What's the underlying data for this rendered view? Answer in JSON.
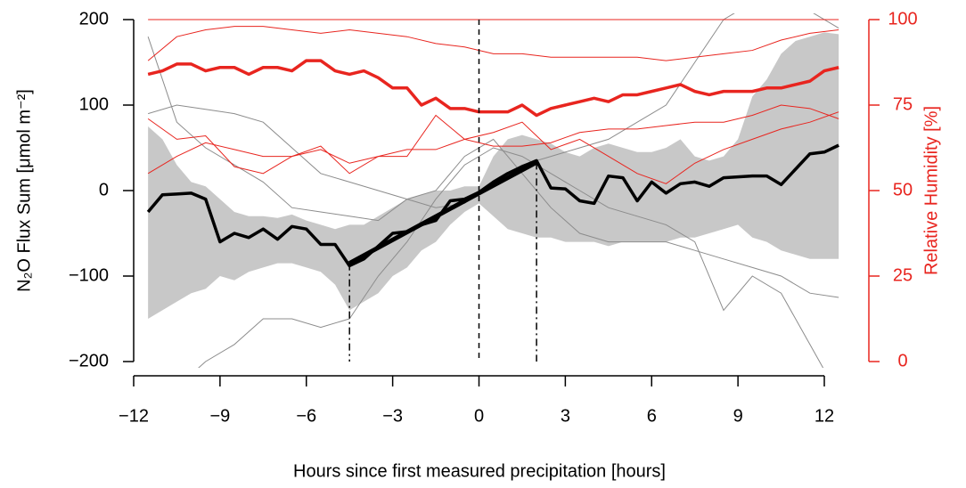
{
  "chart_data": {
    "type": "line",
    "xlabel": "Hours since first measured precipitation [hours]",
    "ylabel": "N₂O Flux Sum [μmol m⁻²]",
    "y2label": "Relative Humidity [%]",
    "xlim": [
      -12,
      12
    ],
    "xticks": [
      {
        "value": -12,
        "label": "−12"
      },
      {
        "value": -9,
        "label": "−9"
      },
      {
        "value": -6,
        "label": "−6"
      },
      {
        "value": -3,
        "label": "−3"
      },
      0,
      3,
      6,
      9,
      12
    ],
    "ylim": [
      -200,
      200
    ],
    "yticks": [
      {
        "value": -200,
        "label": "−200"
      },
      {
        "value": -100,
        "label": "−100"
      },
      0,
      100,
      200
    ],
    "y2lim": [
      0,
      100
    ],
    "y2ticks": [
      0,
      25,
      50,
      75,
      100
    ],
    "x": [
      -11.5,
      -11,
      -10.5,
      -10,
      -9.5,
      -9,
      -8.5,
      -8,
      -7.5,
      -7,
      -6.5,
      -6,
      -5.5,
      -5,
      -4.5,
      -4,
      -3.5,
      -3,
      -2.5,
      -2,
      -1.5,
      -1,
      -0.5,
      0,
      0.5,
      1,
      1.5,
      2,
      2.5,
      3,
      3.5,
      4,
      4.5,
      5,
      5.5,
      6,
      6.5,
      7,
      7.5,
      8,
      8.5,
      9,
      9.5,
      10,
      10.5,
      11,
      11.5,
      12,
      12.5
    ],
    "band": {
      "color": "#c8c8c8",
      "lower": [
        -150,
        -140,
        -130,
        -120,
        -115,
        -100,
        -105,
        -95,
        -90,
        -85,
        -85,
        -90,
        -95,
        -110,
        -140,
        -130,
        -120,
        -100,
        -90,
        -70,
        -60,
        -40,
        -25,
        -15,
        -30,
        -45,
        -50,
        -55,
        -55,
        -60,
        -60,
        -60,
        -65,
        -60,
        -60,
        -60,
        -60,
        -55,
        -55,
        -50,
        -45,
        -40,
        -55,
        -60,
        -70,
        -75,
        -80,
        -80,
        -80
      ],
      "upper": [
        75,
        60,
        30,
        10,
        5,
        -10,
        -25,
        -30,
        -30,
        -32,
        -28,
        -35,
        -40,
        -45,
        -40,
        -40,
        -30,
        -20,
        -10,
        -5,
        0,
        0,
        5,
        5,
        40,
        60,
        65,
        60,
        55,
        45,
        40,
        50,
        55,
        50,
        45,
        45,
        50,
        60,
        40,
        35,
        40,
        60,
        110,
        130,
        160,
        175,
        180,
        185,
        183
      ]
    },
    "thin_series": [
      {
        "color": "#8c8c8c",
        "axis": "y",
        "x": [
          -11.5,
          -10.5,
          -9.5,
          -8.5,
          -7.5,
          -6.5,
          -5.5,
          -4.5,
          -3.5,
          -2.5,
          -1.5,
          -0.5,
          0.5,
          1.5,
          2.5,
          3.5,
          4.5,
          5.5,
          6.5,
          7.5,
          8.5,
          9.5,
          10.5,
          11.5,
          12.5
        ],
        "values": [
          180,
          80,
          50,
          30,
          10,
          -20,
          -25,
          -30,
          -35,
          -10,
          0,
          40,
          60,
          20,
          -20,
          -50,
          -60,
          -60,
          -60,
          -70,
          -80,
          -90,
          -100,
          -120,
          -125
        ]
      },
      {
        "color": "#8c8c8c",
        "axis": "y",
        "x": [
          -11.5,
          -10.5,
          -9.5,
          -8.5,
          -7.5,
          -6.5,
          -5.5,
          -4.5,
          -3.5,
          -2.5,
          -1.5,
          -0.5,
          0.5,
          1.5,
          2.5,
          3.5,
          4.5,
          5.5,
          6.5,
          7.5,
          8.5,
          9.5,
          10.5,
          11.5,
          12.5
        ],
        "values": [
          -210,
          -230,
          -200,
          -180,
          -150,
          -150,
          -160,
          -150,
          -100,
          -60,
          -10,
          30,
          50,
          40,
          20,
          0,
          -20,
          -30,
          -40,
          -60,
          -140,
          -100,
          -120,
          -180,
          -240
        ]
      },
      {
        "color": "#8c8c8c",
        "axis": "y",
        "x": [
          -11.5,
          -10.5,
          -9.5,
          -8.5,
          -7.5,
          -6.5,
          -5.5,
          -4.5,
          -3.5,
          -2.5,
          -1.5,
          -0.5,
          0.5,
          1.5,
          2.5,
          3.5,
          4.5,
          5.5,
          6.5,
          7.5,
          8.5,
          9.5,
          10.5,
          11.5,
          12.5
        ],
        "values": [
          90,
          100,
          95,
          90,
          80,
          50,
          20,
          10,
          0,
          -10,
          -20,
          -15,
          10,
          30,
          40,
          50,
          60,
          80,
          100,
          150,
          200,
          220,
          230,
          210,
          190
        ]
      },
      {
        "color": "#e8251f",
        "axis": "y2",
        "x": [
          -11.5,
          -10.5,
          -9.5,
          -8.5,
          -7.5,
          -6.5,
          -5.5,
          -4.5,
          -3.5,
          -2.5,
          -1.5,
          -0.5,
          0.5,
          1.5,
          2.5,
          3.5,
          4.5,
          5.5,
          6.5,
          7.5,
          8.5,
          9.5,
          10.5,
          11.5,
          12.5
        ],
        "values": [
          100,
          100,
          100,
          100,
          100,
          100,
          100,
          100,
          100,
          100,
          100,
          100,
          100,
          100,
          100,
          100,
          100,
          100,
          100,
          100,
          100,
          100,
          100,
          100,
          100
        ]
      },
      {
        "color": "#e8251f",
        "axis": "y2",
        "x": [
          -11.5,
          -10.5,
          -9.5,
          -8.5,
          -7.5,
          -6.5,
          -5.5,
          -4.5,
          -3.5,
          -2.5,
          -1.5,
          -0.5,
          0.5,
          1.5,
          2.5,
          3.5,
          4.5,
          5.5,
          6.5,
          7.5,
          8.5,
          9.5,
          10.5,
          11.5,
          12.5
        ],
        "values": [
          88,
          95,
          97,
          98,
          98,
          97,
          96,
          97,
          96,
          95,
          93,
          92,
          90,
          90,
          89,
          89,
          89,
          89,
          88,
          89,
          90,
          91,
          94,
          96,
          97
        ]
      },
      {
        "color": "#e8251f",
        "axis": "y2",
        "x": [
          -11.5,
          -10.5,
          -9.5,
          -8.5,
          -7.5,
          -6.5,
          -5.5,
          -4.5,
          -3.5,
          -2.5,
          -1.5,
          -0.5,
          0.5,
          1.5,
          2.5,
          3.5,
          4.5,
          5.5,
          6.5,
          7.5,
          8.5,
          9.5,
          10.5,
          11.5,
          12.5
        ],
        "values": [
          71,
          65,
          66,
          57,
          55,
          60,
          63,
          55,
          60,
          60,
          72,
          65,
          67,
          70,
          62,
          65,
          60,
          55,
          52,
          58,
          62,
          65,
          68,
          70,
          73
        ]
      },
      {
        "color": "#e8251f",
        "axis": "y2",
        "x": [
          -11.5,
          -10.5,
          -9.5,
          -8.5,
          -7.5,
          -6.5,
          -5.5,
          -4.5,
          -3.5,
          -2.5,
          -1.5,
          -0.5,
          0.5,
          1.5,
          2.5,
          3.5,
          4.5,
          5.5,
          6.5,
          7.5,
          8.5,
          9.5,
          10.5,
          11.5,
          12.5
        ],
        "values": [
          55,
          60,
          64,
          62,
          60,
          60,
          62,
          58,
          60,
          62,
          62,
          65,
          63,
          63,
          64,
          67,
          68,
          68,
          69,
          70,
          70,
          72,
          75,
          74,
          71
        ]
      }
    ],
    "series": [
      {
        "color": "#e8251f",
        "axis": "y2",
        "values": [
          84,
          85,
          87,
          87,
          85,
          86,
          86,
          84,
          86,
          86,
          85,
          88,
          88,
          85,
          84,
          85,
          83,
          80,
          80,
          75,
          77,
          74,
          74,
          73,
          73,
          73,
          75,
          72,
          74,
          75,
          76,
          77,
          76,
          78,
          78,
          79,
          80,
          81,
          79,
          78,
          79,
          79,
          79,
          80,
          80,
          81,
          82,
          85,
          86
        ]
      },
      {
        "color": "#000000",
        "axis": "y",
        "values": [
          -25,
          -5,
          -4,
          -3,
          -10,
          -60,
          -50,
          -55,
          -45,
          -57,
          -42,
          -45,
          -63,
          -63,
          -88,
          -80,
          -65,
          -50,
          -48,
          -40,
          -35,
          -12,
          -10,
          -2,
          10,
          20,
          28,
          35,
          3,
          2,
          -12,
          -15,
          17,
          15,
          -12,
          10,
          -3,
          8,
          10,
          5,
          15,
          16,
          17,
          17,
          7,
          25,
          43,
          45,
          53
        ]
      }
    ],
    "regression": {
      "color": "#000000",
      "x": [
        -4.5,
        0,
        2
      ],
      "values": [
        -85,
        -3,
        33
      ]
    },
    "markers": [
      {
        "x": -4.5,
        "y": -85,
        "dash": "dashdot"
      },
      {
        "x": 0,
        "dash": "dashed"
      },
      {
        "x": 2,
        "y": 33,
        "dash": "dashdot"
      }
    ]
  }
}
